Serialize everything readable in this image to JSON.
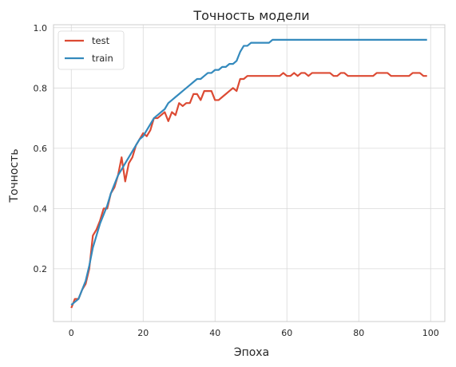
{
  "chart_data": {
    "type": "line",
    "title": "Точность модели",
    "xlabel": "Эпоха",
    "ylabel": "Точность",
    "xlim": [
      -4.95,
      103.95
    ],
    "ylim": [
      0.025,
      1.01
    ],
    "xticks": [
      0,
      20,
      40,
      60,
      80,
      100
    ],
    "yticks": [
      0.2,
      0.4,
      0.6,
      0.8,
      1.0
    ],
    "ytick_labels": [
      "0.2",
      "0.4",
      "0.6",
      "0.8",
      "1.0"
    ],
    "grid": true,
    "legend": "top-left",
    "x": [
      0,
      1,
      2,
      3,
      4,
      5,
      6,
      7,
      8,
      9,
      10,
      11,
      12,
      13,
      14,
      15,
      16,
      17,
      18,
      19,
      20,
      21,
      22,
      23,
      24,
      25,
      26,
      27,
      28,
      29,
      30,
      31,
      32,
      33,
      34,
      35,
      36,
      37,
      38,
      39,
      40,
      41,
      42,
      43,
      44,
      45,
      46,
      47,
      48,
      49,
      50,
      51,
      52,
      53,
      54,
      55,
      56,
      57,
      58,
      59,
      60,
      61,
      62,
      63,
      64,
      65,
      66,
      67,
      68,
      69,
      70,
      71,
      72,
      73,
      74,
      75,
      76,
      77,
      78,
      79,
      80,
      81,
      82,
      83,
      84,
      85,
      86,
      87,
      88,
      89,
      90,
      91,
      92,
      93,
      94,
      95,
      96,
      97,
      98,
      99
    ],
    "series": [
      {
        "name": "test",
        "color": "#dc4a33",
        "values": [
          0.07,
          0.1,
          0.1,
          0.13,
          0.15,
          0.2,
          0.31,
          0.33,
          0.36,
          0.4,
          0.4,
          0.45,
          0.47,
          0.51,
          0.57,
          0.49,
          0.55,
          0.57,
          0.61,
          0.63,
          0.65,
          0.64,
          0.66,
          0.7,
          0.7,
          0.71,
          0.72,
          0.69,
          0.72,
          0.71,
          0.75,
          0.74,
          0.75,
          0.75,
          0.78,
          0.78,
          0.76,
          0.79,
          0.79,
          0.79,
          0.76,
          0.76,
          0.77,
          0.78,
          0.79,
          0.8,
          0.79,
          0.83,
          0.83,
          0.84,
          0.84,
          0.84,
          0.84,
          0.84,
          0.84,
          0.84,
          0.84,
          0.84,
          0.84,
          0.85,
          0.84,
          0.84,
          0.85,
          0.84,
          0.85,
          0.85,
          0.84,
          0.85,
          0.85,
          0.85,
          0.85,
          0.85,
          0.85,
          0.84,
          0.84,
          0.85,
          0.85,
          0.84,
          0.84,
          0.84,
          0.84,
          0.84,
          0.84,
          0.84,
          0.84,
          0.85,
          0.85,
          0.85,
          0.85,
          0.84,
          0.84,
          0.84,
          0.84,
          0.84,
          0.84,
          0.85,
          0.85,
          0.85,
          0.84,
          0.84
        ]
      },
      {
        "name": "train",
        "color": "#348abd",
        "values": [
          0.08,
          0.09,
          0.1,
          0.13,
          0.16,
          0.21,
          0.27,
          0.31,
          0.35,
          0.38,
          0.41,
          0.45,
          0.48,
          0.51,
          0.53,
          0.55,
          0.57,
          0.59,
          0.61,
          0.63,
          0.64,
          0.66,
          0.68,
          0.7,
          0.71,
          0.72,
          0.73,
          0.75,
          0.76,
          0.77,
          0.78,
          0.79,
          0.8,
          0.81,
          0.82,
          0.83,
          0.83,
          0.84,
          0.85,
          0.85,
          0.86,
          0.86,
          0.87,
          0.87,
          0.88,
          0.88,
          0.89,
          0.92,
          0.94,
          0.94,
          0.95,
          0.95,
          0.95,
          0.95,
          0.95,
          0.95,
          0.96,
          0.96,
          0.96,
          0.96,
          0.96,
          0.96,
          0.96,
          0.96,
          0.96,
          0.96,
          0.96,
          0.96,
          0.96,
          0.96,
          0.96,
          0.96,
          0.96,
          0.96,
          0.96,
          0.96,
          0.96,
          0.96,
          0.96,
          0.96,
          0.96,
          0.96,
          0.96,
          0.96,
          0.96,
          0.96,
          0.96,
          0.96,
          0.96,
          0.96,
          0.96,
          0.96,
          0.96,
          0.96,
          0.96,
          0.96,
          0.96,
          0.96,
          0.96,
          0.96
        ]
      }
    ]
  }
}
